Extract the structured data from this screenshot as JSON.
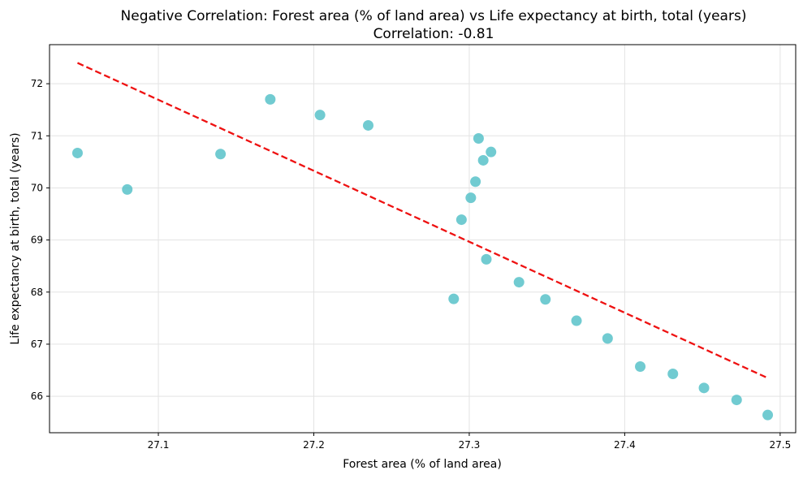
{
  "chart_data": {
    "type": "scatter",
    "title": "Negative Correlation: Forest area (% of land area) vs Life expectancy at birth, total (years)",
    "subtitle": "Correlation: -0.81",
    "xlabel": "Forest area (% of land area)",
    "ylabel": "Life expectancy at birth, total (years)",
    "xlim": [
      27.03,
      27.51
    ],
    "ylim": [
      65.3,
      72.75
    ],
    "xticks": [
      27.1,
      27.2,
      27.3,
      27.4,
      27.5
    ],
    "yticks": [
      66,
      67,
      68,
      69,
      70,
      71,
      72
    ],
    "xtick_labels": [
      "27.1",
      "27.2",
      "27.3",
      "27.4",
      "27.5"
    ],
    "ytick_labels": [
      "66",
      "67",
      "68",
      "69",
      "70",
      "71",
      "72"
    ],
    "grid": true,
    "points": [
      {
        "x": 27.048,
        "y": 70.67
      },
      {
        "x": 27.08,
        "y": 69.97
      },
      {
        "x": 27.14,
        "y": 70.65
      },
      {
        "x": 27.172,
        "y": 71.7
      },
      {
        "x": 27.204,
        "y": 71.4
      },
      {
        "x": 27.235,
        "y": 71.2
      },
      {
        "x": 27.306,
        "y": 70.95
      },
      {
        "x": 27.314,
        "y": 70.69
      },
      {
        "x": 27.309,
        "y": 70.53
      },
      {
        "x": 27.304,
        "y": 70.12
      },
      {
        "x": 27.301,
        "y": 69.81
      },
      {
        "x": 27.295,
        "y": 69.39
      },
      {
        "x": 27.311,
        "y": 68.63
      },
      {
        "x": 27.29,
        "y": 67.87
      },
      {
        "x": 27.332,
        "y": 68.19
      },
      {
        "x": 27.349,
        "y": 67.86
      },
      {
        "x": 27.369,
        "y": 67.45
      },
      {
        "x": 27.389,
        "y": 67.11
      },
      {
        "x": 27.41,
        "y": 66.57
      },
      {
        "x": 27.431,
        "y": 66.43
      },
      {
        "x": 27.451,
        "y": 66.16
      },
      {
        "x": 27.472,
        "y": 65.93
      },
      {
        "x": 27.492,
        "y": 65.64
      }
    ],
    "trend_line": [
      {
        "x": 27.048,
        "y": 72.4
      },
      {
        "x": 27.492,
        "y": 66.35
      }
    ],
    "colors": {
      "points": "#4dbec6",
      "trend": "#ee1111",
      "grid": "#e3e3e3"
    }
  }
}
